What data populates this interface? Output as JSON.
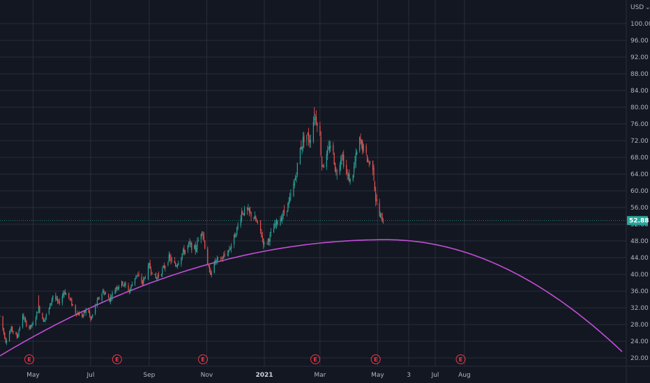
{
  "chart_data": {
    "type": "candlestick",
    "currency": "USD",
    "y_axis": {
      "ylim": [
        18,
        104
      ],
      "ticks": [
        "20.00",
        "24.00",
        "28.00",
        "32.00",
        "36.00",
        "40.00",
        "44.00",
        "48.00",
        "52.00",
        "56.00",
        "60.00",
        "64.00",
        "68.00",
        "72.00",
        "76.00",
        "80.00",
        "84.00",
        "88.00",
        "92.00",
        "96.00",
        "100.00"
      ]
    },
    "x_axis": {
      "ticks": [
        {
          "label": "May",
          "date": "2020-05-01",
          "bold": false
        },
        {
          "label": "Jul",
          "date": "2020-07-01",
          "bold": false
        },
        {
          "label": "Sep",
          "date": "2020-09-01",
          "bold": false
        },
        {
          "label": "Nov",
          "date": "2020-11-01",
          "bold": false
        },
        {
          "label": "2021",
          "date": "2021-01-01",
          "bold": true
        },
        {
          "label": "Mar",
          "date": "2021-03-01",
          "bold": false
        },
        {
          "label": "May",
          "date": "2021-05-01",
          "bold": false
        },
        {
          "label": "3",
          "date": "2021-06-03",
          "bold": false
        },
        {
          "label": "Jul",
          "date": "2021-07-01",
          "bold": false
        },
        {
          "label": "Aug",
          "date": "2021-08-01",
          "bold": false
        }
      ]
    },
    "last_price": "52.88",
    "last_price_value": 52.88,
    "price_path": [
      [
        "2020-03-27",
        30
      ],
      [
        "2020-04-02",
        24
      ],
      [
        "2020-04-08",
        27
      ],
      [
        "2020-04-14",
        25
      ],
      [
        "2020-04-20",
        30
      ],
      [
        "2020-04-26",
        27
      ],
      [
        "2020-05-01",
        28
      ],
      [
        "2020-05-07",
        32
      ],
      [
        "2020-05-12",
        29
      ],
      [
        "2020-05-17",
        31
      ],
      [
        "2020-05-22",
        35
      ],
      [
        "2020-05-28",
        33
      ],
      [
        "2020-06-03",
        36
      ],
      [
        "2020-06-09",
        34
      ],
      [
        "2020-06-15",
        31
      ],
      [
        "2020-06-22",
        30
      ],
      [
        "2020-06-28",
        32
      ],
      [
        "2020-07-01",
        29
      ],
      [
        "2020-07-07",
        33
      ],
      [
        "2020-07-14",
        36
      ],
      [
        "2020-07-21",
        34
      ],
      [
        "2020-07-28",
        37
      ],
      [
        "2020-08-04",
        38
      ],
      [
        "2020-08-11",
        36
      ],
      [
        "2020-08-18",
        40
      ],
      [
        "2020-08-25",
        38
      ],
      [
        "2020-09-01",
        42
      ],
      [
        "2020-09-08",
        39
      ],
      [
        "2020-09-15",
        41
      ],
      [
        "2020-09-22",
        44
      ],
      [
        "2020-09-29",
        42
      ],
      [
        "2020-10-06",
        45
      ],
      [
        "2020-10-13",
        47
      ],
      [
        "2020-10-20",
        46
      ],
      [
        "2020-10-27",
        51
      ],
      [
        "2020-11-01",
        44
      ],
      [
        "2020-11-04",
        40
      ],
      [
        "2020-11-10",
        43
      ],
      [
        "2020-11-18",
        44
      ],
      [
        "2020-11-25",
        46
      ],
      [
        "2020-12-02",
        50
      ],
      [
        "2020-12-08",
        55
      ],
      [
        "2020-12-14",
        55
      ],
      [
        "2020-12-20",
        54
      ],
      [
        "2020-12-27",
        51
      ],
      [
        "2021-01-01",
        47
      ],
      [
        "2021-01-07",
        49
      ],
      [
        "2021-01-13",
        52
      ],
      [
        "2021-01-20",
        54
      ],
      [
        "2021-01-27",
        57
      ],
      [
        "2021-02-02",
        62
      ],
      [
        "2021-02-08",
        70
      ],
      [
        "2021-02-14",
        74
      ],
      [
        "2021-02-18",
        72
      ],
      [
        "2021-02-23",
        78
      ],
      [
        "2021-02-28",
        76
      ],
      [
        "2021-03-03",
        66
      ],
      [
        "2021-03-08",
        68
      ],
      [
        "2021-03-13",
        72
      ],
      [
        "2021-03-18",
        64
      ],
      [
        "2021-03-24",
        69
      ],
      [
        "2021-03-29",
        64
      ],
      [
        "2021-04-03",
        62
      ],
      [
        "2021-04-08",
        68
      ],
      [
        "2021-04-12",
        72
      ],
      [
        "2021-04-16",
        70
      ],
      [
        "2021-04-21",
        67
      ],
      [
        "2021-04-26",
        66
      ],
      [
        "2021-04-29",
        58
      ],
      [
        "2021-05-03",
        54
      ],
      [
        "2021-05-07",
        52.88
      ]
    ],
    "highlights": [
      {
        "date": "2020-05-07",
        "high": 35
      },
      {
        "date": "2021-02-23",
        "high": 80
      },
      {
        "date": "2021-04-12",
        "high": 73
      }
    ],
    "curve": {
      "name": "",
      "color": "#c24ed6",
      "start": [
        "2020-03-27",
        20.5
      ],
      "peak": [
        "2021-05-10",
        48.3
      ],
      "end": [
        "2022-01-15",
        21.5
      ]
    },
    "earnings_markers": [
      {
        "label": "E",
        "date": "2020-04-27"
      },
      {
        "label": "E",
        "date": "2020-07-29"
      },
      {
        "label": "E",
        "date": "2020-10-28"
      },
      {
        "label": "E",
        "date": "2021-02-24"
      },
      {
        "label": "E",
        "date": "2021-04-29"
      },
      {
        "label": "E",
        "date": "2021-07-28"
      }
    ]
  },
  "colors": {
    "background": "#131722",
    "grid": "#2a2e39",
    "up": "#26a69a",
    "down": "#ef5350",
    "price_label_bg": "#26a69a",
    "earnings": "#f23645"
  }
}
